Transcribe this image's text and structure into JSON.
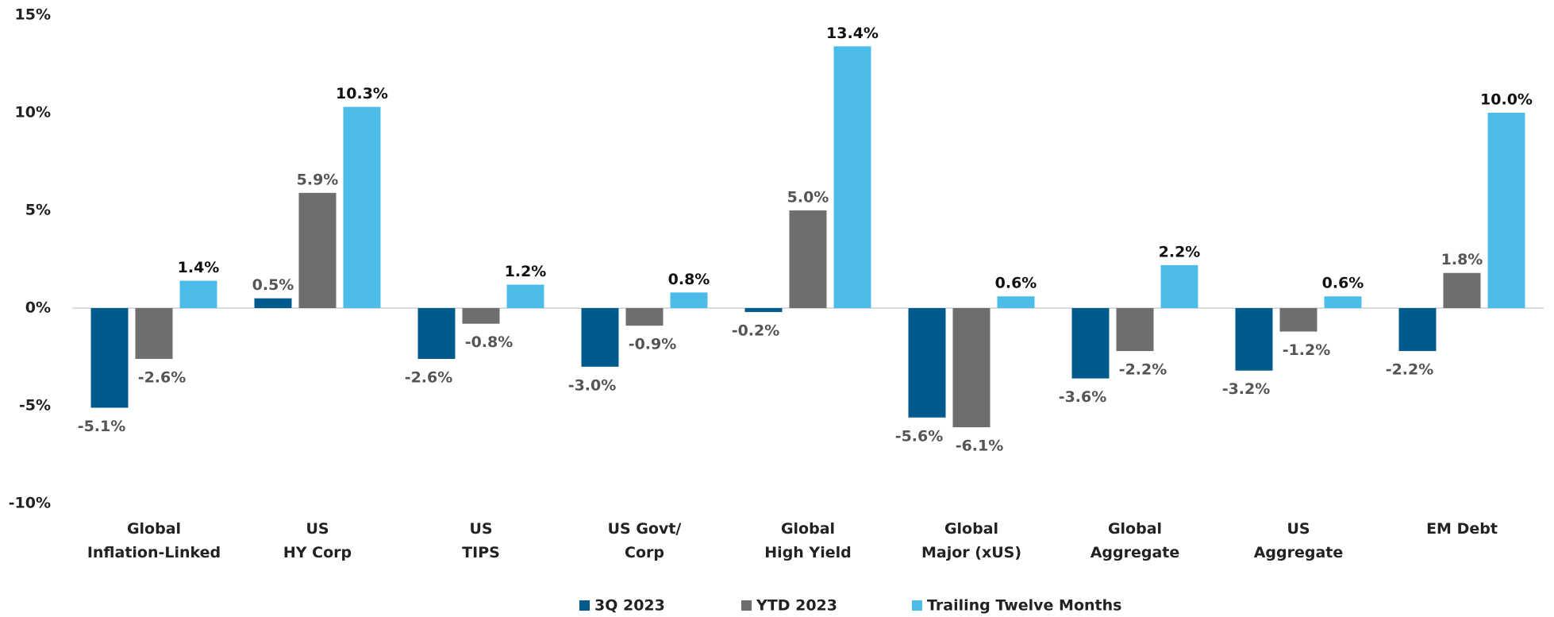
{
  "chart_data": {
    "type": "bar",
    "categories": [
      [
        "Global",
        "Inflation-Linked"
      ],
      [
        "US",
        "HY Corp"
      ],
      [
        "US",
        "TIPS"
      ],
      [
        "US Govt/",
        "Corp"
      ],
      [
        "Global",
        "High Yield"
      ],
      [
        "Global",
        "Major (xUS)"
      ],
      [
        "Global",
        "Aggregate"
      ],
      [
        "US",
        "Aggregate"
      ],
      [
        "EM Debt"
      ]
    ],
    "series": [
      {
        "name": "3Q 2023",
        "color": "#005a8c",
        "values": [
          -5.1,
          0.5,
          -2.6,
          -3.0,
          -0.2,
          -5.6,
          -3.6,
          -3.2,
          -2.2
        ],
        "value_labels": [
          "-5.1%",
          "0.5%",
          "-2.6%",
          "-3.0%",
          "-0.2%",
          "-5.6%",
          "-3.6%",
          "-3.2%",
          "-2.2%"
        ]
      },
      {
        "name": "YTD 2023",
        "color": "#6d6e6e",
        "values": [
          -2.6,
          5.9,
          -0.8,
          -0.9,
          5.0,
          -6.1,
          -2.2,
          -1.2,
          1.8
        ],
        "value_labels": [
          "-2.6%",
          "5.9%",
          "-0.8%",
          "-0.9%",
          "5.0%",
          "-6.1%",
          "-2.2%",
          "-1.2%",
          "1.8%"
        ]
      },
      {
        "name": "Trailing Twelve Months",
        "color": "#4bbce8",
        "values": [
          1.4,
          10.3,
          1.2,
          0.8,
          13.4,
          0.6,
          2.2,
          0.6,
          10.0
        ],
        "value_labels": [
          "1.4%",
          "10.3%",
          "1.2%",
          "0.8%",
          "13.4%",
          "0.6%",
          "2.2%",
          "0.6%",
          "10.0%"
        ]
      }
    ],
    "ylim": [
      -10,
      15
    ],
    "yticks": [
      {
        "value": -10,
        "label": "-10%"
      },
      {
        "value": -5,
        "label": "-5%"
      },
      {
        "value": 0,
        "label": "0%"
      },
      {
        "value": 5,
        "label": "5%"
      },
      {
        "value": 10,
        "label": "10%"
      },
      {
        "value": 15,
        "label": "15%"
      }
    ],
    "legend": "bottom"
  }
}
